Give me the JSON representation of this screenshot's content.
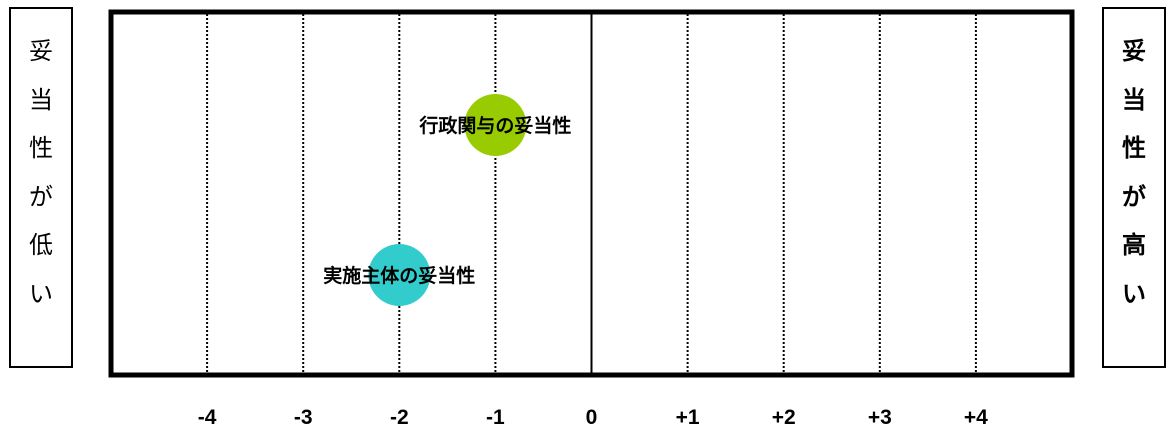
{
  "left_label": {
    "chars": [
      "妥",
      "当",
      "性",
      "が",
      "低",
      "い"
    ]
  },
  "right_label": {
    "chars": [
      "妥",
      "当",
      "性",
      "が",
      "高",
      "い"
    ]
  },
  "chart_data": {
    "type": "scatter",
    "x_ticks": [
      "-4",
      "-3",
      "-2",
      "-1",
      "0",
      "+1",
      "+2",
      "+3",
      "+4"
    ],
    "x_tick_values": [
      -4,
      -3,
      -2,
      -1,
      0,
      1,
      2,
      3,
      4
    ],
    "xlim": [
      -5,
      5
    ],
    "grid": true,
    "points": [
      {
        "label": "行政関与の妥当性",
        "x": -1,
        "color": "#99cc00"
      },
      {
        "label": "実施主体の妥当性",
        "x": -2,
        "color": "#33cccc"
      }
    ]
  }
}
